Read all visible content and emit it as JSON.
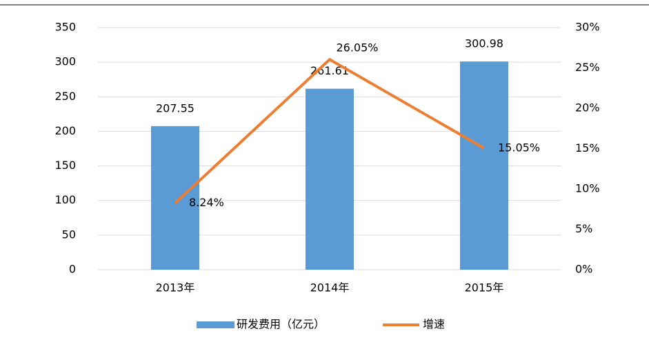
{
  "chart_data": {
    "type": "bar",
    "categories": [
      "2013年",
      "2014年",
      "2015年"
    ],
    "series": [
      {
        "name": "研发费用（亿元）",
        "type": "bar",
        "color": "#5b9bd5",
        "values": [
          207.55,
          261.61,
          300.98
        ]
      },
      {
        "name": "增速",
        "type": "line",
        "axis": "y2",
        "color": "#ed7d31",
        "label_color": "#c00000",
        "values": [
          8.24,
          26.05,
          15.05
        ],
        "value_labels": [
          "8.24%",
          "26.05%",
          "15.05%"
        ]
      }
    ],
    "ylim": [
      0,
      350
    ],
    "yticks": [
      0,
      50,
      100,
      150,
      200,
      250,
      300,
      350
    ],
    "y2lim": [
      0,
      30
    ],
    "y2ticks": [
      {
        "value": 0,
        "label": "0%"
      },
      {
        "value": 5,
        "label": "5%"
      },
      {
        "value": 10,
        "label": "10%"
      },
      {
        "value": 15,
        "label": "15%"
      },
      {
        "value": 20,
        "label": "20%"
      },
      {
        "value": 25,
        "label": "25%"
      },
      {
        "value": 30,
        "label": "30%"
      }
    ],
    "grid": true,
    "legend": "bottom"
  }
}
